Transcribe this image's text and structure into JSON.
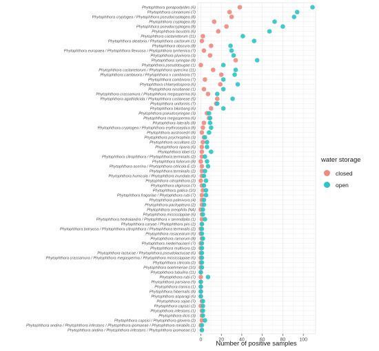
{
  "colors": {
    "closed": "#F08A80",
    "open": "#2EC4C6"
  },
  "chart_data": {
    "type": "scatter",
    "xlabel": "Number of positive samples",
    "ylabel": "",
    "xlim": [
      -3,
      112
    ],
    "xticks": [
      0,
      20,
      40,
      60,
      80,
      100
    ],
    "grid": true,
    "legend_position": "right",
    "legend_title": "water storage",
    "series": [
      {
        "name": "closed",
        "color": "#F08A80"
      },
      {
        "name": "open",
        "color": "#2EC4C6"
      }
    ],
    "categories": [
      "Phytophthora gonapodyides (6)",
      "Phytophthora cinnamomi (7)",
      "Phytophthora cryptogea / Phytophthora pseudocryptogea (8)",
      "Phytophthora cryptogea (8)",
      "Phytophthora pseudocryptogea (8)",
      "Phytophthora lacustris (6)",
      "Phytophthora castanetorum (11)",
      "Phytophthora aleatoria / Phytophthora cactorum (1)",
      "Phytophthora obscura (8)",
      "Phytophthora europaea / Phytophthora flexuosa / Phytophthora tyrrhenica (7)",
      "Phytophthora pluvivora (3)",
      "Phytophthora syringae (8)",
      "Phytophthora pseudotsugae (1)",
      "Phytophthora castanetorum / Phytophthora quercina (11)",
      "Phytophthora cambivora / Phytophthora x cambivora (7)",
      "Phytophthora cambivora (7)",
      "Phytophthora chlamydospora (6)",
      "Phytophthora nicotianae (1)",
      "Phytophthora crassamura / Phytophthora megasperma (6)",
      "Phytophthora agathidicida / Phytophthora castaneae (5)",
      "Phytophthora uniformis (7)",
      "Phytophthora bilorbang (6)",
      "Phytophthora pseudosyringae (3)",
      "Phytophthora megasperma (6)",
      "Phytophthora lateralis (8)",
      "Phytophthora cryptogea / Phytophthora erythroseptica (8)",
      "Phytophthora austrocedri (8)",
      "Phytophthora psychrophila (3)",
      "Phytophthora occultans (2)",
      "Phytophthora riparia (6)",
      "Phytophthora idaei (1)",
      "Phytophthora citrophthora / Phytophthora terminalis (2)",
      "Phytophthora foliorum (8)",
      "Phytophthora acerina / Phytophthora citricola E (2)",
      "Phytophthora terminalis (2)",
      "Phytophthora humicola / Phytophthora inundata (6)",
      "Phytophthora citrophthora (2)",
      "Phytophthora uliginosa (7)",
      "Phytophthora gallica (10)",
      "Phytophthora fragariae / Phytophthora rubi (7)",
      "Phytophthora palmivora (4)",
      "Phytophthora pachypleura (2)",
      "Phytophthora oreophila (NA)",
      "Phytophthora mississippiae (6)",
      "Phytophthora hedraiandra / Phytophthora x serendipita (1)",
      "Phytophthora caryae / Phytophthora pini (2)",
      "Phytophthora botryosa / Phytophthora citrophthora / Phytophthora terminalis (2)",
      "Phytophthora rosacearum (6)",
      "Phytophthora ramorum (8)",
      "Phytophthora niederhauserii (7)",
      "Phytophthora multivora (2)",
      "Phytophthora lactucae / Phytophthora pseudolactucae (6)",
      "Phytophthora crassamura / Phytophthora megasperma / Phytophthora mississippiae (6)",
      "Phytophthora citricola (2)",
      "Phytophthora boehmeriae (10)",
      "Phytophthora tubulina (11)",
      "Phytophthora rubi (7)",
      "Phytophthora parsiana (9)",
      "Phytophthora iranica (1)",
      "Phytophthora hibernalis (8)",
      "Phytophthora asparagi (6)",
      "Phytophthora sojae (7)",
      "Phytophthora capsici (2)",
      "Phytophthora infestans (1)",
      "Phytophthora ilicis (3)",
      "Phytophthora capsici / Phytophthora glovera (2)",
      "Phytophthora andina / Phytophthora infestans / Phytophthora ipomoeae / Phytophthora mirabilis (1)",
      "Phytophthora andina / Phytophthora infestans / Phytophthora ipomoeae (1)"
    ],
    "closed": [
      38,
      28,
      30,
      13,
      25,
      17,
      2,
      1,
      10,
      3,
      9,
      34,
      0,
      12,
      20,
      4,
      19,
      3,
      7,
      16,
      15,
      10,
      6,
      8,
      3,
      2,
      1,
      3,
      2,
      1,
      1,
      1,
      0,
      1,
      1,
      1,
      0,
      1,
      2,
      1,
      1,
      1,
      0,
      1,
      1,
      1,
      0,
      0,
      1,
      0,
      0,
      0,
      0,
      0,
      0,
      0,
      0,
      0,
      0,
      0,
      0,
      1,
      0,
      1,
      1,
      1,
      0,
      1
    ],
    "open": [
      109,
      94,
      91,
      72,
      80,
      67,
      41,
      52,
      29,
      30,
      32,
      55,
      22,
      34,
      33,
      22,
      36,
      22,
      16,
      31,
      16,
      22,
      8,
      9,
      9,
      10,
      8,
      4,
      6,
      6,
      10,
      4,
      6,
      7,
      4,
      3,
      5,
      3,
      5,
      5,
      3,
      3,
      2,
      2,
      4,
      1,
      1,
      1,
      2,
      1,
      1,
      1,
      1,
      1,
      1,
      0,
      7,
      0,
      0,
      0,
      0,
      2,
      2,
      2,
      2,
      4,
      1,
      1
    ]
  }
}
